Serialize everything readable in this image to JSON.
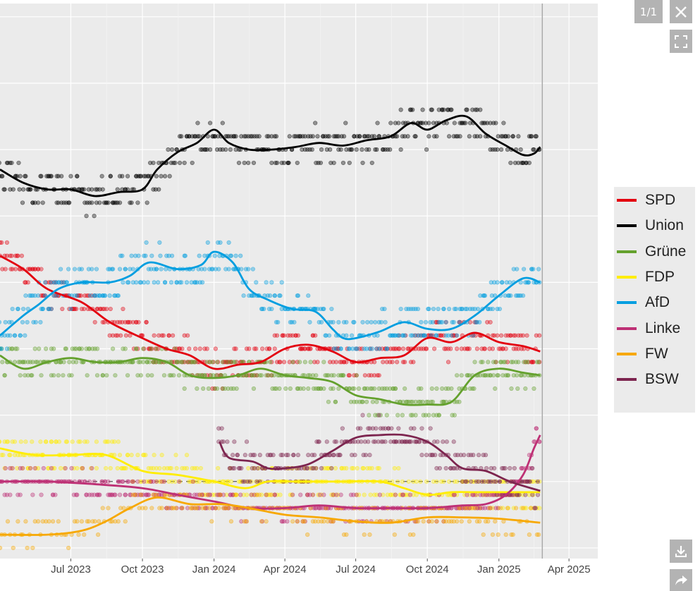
{
  "controls": {
    "counter": "1/1",
    "close_icon": "close-icon",
    "fullscreen_icon": "fullscreen-icon",
    "download_icon": "download-icon",
    "share_icon": "share-icon"
  },
  "chart_data": {
    "type": "scatter",
    "title": "",
    "xlabel": "",
    "ylabel": "",
    "x_tick_labels": [
      "Jul 2023",
      "Oct 2023",
      "Jan 2024",
      "Apr 2024",
      "Jul 2024",
      "Oct 2024",
      "Jan 2025",
      "Apr 2025"
    ],
    "x_ticks": [
      "2023-07-01",
      "2023-10-01",
      "2024-01-01",
      "2024-04-01",
      "2024-07-01",
      "2024-10-01",
      "2025-01-01",
      "2025-04-01"
    ],
    "xlim": [
      "2023-04-01",
      "2025-05-08"
    ],
    "ylim": [
      -0.8,
      41
    ],
    "y_gridlines": [
      0,
      5,
      10,
      15,
      20,
      25,
      30,
      35,
      40
    ],
    "threshold_line": 5,
    "end_marker_date": "2025-02-23",
    "grid": true,
    "legend_position": "right",
    "series": [
      {
        "name": "SPD",
        "color": "#e3000f",
        "trend": [
          [
            "2023-04-01",
            22
          ],
          [
            "2023-05-01",
            21
          ],
          [
            "2023-06-01",
            19.5
          ],
          [
            "2023-07-15",
            18.5
          ],
          [
            "2023-08-20",
            17
          ],
          [
            "2023-10-01",
            15.8
          ],
          [
            "2023-11-01",
            15
          ],
          [
            "2023-12-01",
            14.5
          ],
          [
            "2024-01-01",
            13.5
          ],
          [
            "2024-02-01",
            13.8
          ],
          [
            "2024-03-01",
            14
          ],
          [
            "2024-04-01",
            15
          ],
          [
            "2024-05-01",
            15.3
          ],
          [
            "2024-06-01",
            14.8
          ],
          [
            "2024-07-01",
            14
          ],
          [
            "2024-08-01",
            14.3
          ],
          [
            "2024-09-01",
            14.5
          ],
          [
            "2024-10-01",
            15.8
          ],
          [
            "2024-11-01",
            15.5
          ],
          [
            "2024-12-01",
            16.2
          ],
          [
            "2025-01-01",
            15.5
          ],
          [
            "2025-02-01",
            15.2
          ],
          [
            "2025-02-23",
            14.8
          ]
        ],
        "spread": 1.2,
        "density": 2
      },
      {
        "name": "Union",
        "color": "#000000",
        "trend": [
          [
            "2023-04-01",
            28.5
          ],
          [
            "2023-05-01",
            27.5
          ],
          [
            "2023-06-01",
            27
          ],
          [
            "2023-07-01",
            27
          ],
          [
            "2023-08-01",
            26.5
          ],
          [
            "2023-09-01",
            26.8
          ],
          [
            "2023-10-01",
            27
          ],
          [
            "2023-10-20",
            28.5
          ],
          [
            "2023-11-15",
            29.8
          ],
          [
            "2023-12-10",
            30.5
          ],
          [
            "2024-01-01",
            31.5
          ],
          [
            "2024-01-20",
            30.5
          ],
          [
            "2024-02-15",
            30
          ],
          [
            "2024-03-15",
            30
          ],
          [
            "2024-04-15",
            30.2
          ],
          [
            "2024-05-15",
            30.5
          ],
          [
            "2024-06-15",
            30.3
          ],
          [
            "2024-07-15",
            30.7
          ],
          [
            "2024-08-15",
            31
          ],
          [
            "2024-09-10",
            32
          ],
          [
            "2024-10-01",
            31.5
          ],
          [
            "2024-10-25",
            32.2
          ],
          [
            "2024-11-20",
            32.5
          ],
          [
            "2024-12-15",
            31.2
          ],
          [
            "2025-01-10",
            30.3
          ],
          [
            "2025-02-01",
            29.6
          ],
          [
            "2025-02-15",
            29.7
          ],
          [
            "2025-02-23",
            30.2
          ]
        ],
        "spread": 1.3,
        "density": 2
      },
      {
        "name": "Grüne",
        "color": "#64a12d",
        "trend": [
          [
            "2023-04-01",
            14.5
          ],
          [
            "2023-05-01",
            13.5
          ],
          [
            "2023-06-01",
            14
          ],
          [
            "2023-07-01",
            14.3
          ],
          [
            "2023-08-01",
            14
          ],
          [
            "2023-09-01",
            14
          ],
          [
            "2023-10-01",
            14.3
          ],
          [
            "2023-11-01",
            14
          ],
          [
            "2023-12-01",
            13
          ],
          [
            "2024-01-01",
            12.8
          ],
          [
            "2024-02-01",
            13
          ],
          [
            "2024-03-01",
            13.5
          ],
          [
            "2024-04-01",
            13
          ],
          [
            "2024-05-01",
            12.8
          ],
          [
            "2024-06-01",
            12.5
          ],
          [
            "2024-07-01",
            11.5
          ],
          [
            "2024-08-01",
            11.2
          ],
          [
            "2024-09-01",
            10.8
          ],
          [
            "2024-10-01",
            10.8
          ],
          [
            "2024-11-01",
            11
          ],
          [
            "2024-12-01",
            13
          ],
          [
            "2025-01-01",
            13.5
          ],
          [
            "2025-02-01",
            13.2
          ],
          [
            "2025-02-23",
            13
          ]
        ],
        "spread": 1.2,
        "density": 2
      },
      {
        "name": "FDP",
        "color": "#ffed00",
        "trend": [
          [
            "2023-04-01",
            7.5
          ],
          [
            "2023-05-15",
            7
          ],
          [
            "2023-07-01",
            7
          ],
          [
            "2023-08-15",
            7
          ],
          [
            "2023-10-01",
            5.8
          ],
          [
            "2023-11-15",
            5.5
          ],
          [
            "2024-01-01",
            5
          ],
          [
            "2024-02-10",
            4.5
          ],
          [
            "2024-03-10",
            5
          ],
          [
            "2024-04-15",
            5
          ],
          [
            "2024-05-15",
            5
          ],
          [
            "2024-06-15",
            5
          ],
          [
            "2024-08-01",
            5
          ],
          [
            "2024-09-01",
            4.5
          ],
          [
            "2024-10-01",
            4
          ],
          [
            "2024-11-01",
            4.2
          ],
          [
            "2024-12-01",
            4.2
          ],
          [
            "2025-01-01",
            4.2
          ],
          [
            "2025-02-23",
            4.2
          ]
        ],
        "spread": 1.2,
        "density": 2
      },
      {
        "name": "AfD",
        "color": "#009ee0",
        "trend": [
          [
            "2023-04-01",
            16
          ],
          [
            "2023-05-01",
            17.5
          ],
          [
            "2023-05-20",
            18.3
          ],
          [
            "2023-06-15",
            19.5
          ],
          [
            "2023-07-15",
            20
          ],
          [
            "2023-08-20",
            20
          ],
          [
            "2023-09-15",
            20.5
          ],
          [
            "2023-10-10",
            21.5
          ],
          [
            "2023-11-15",
            21
          ],
          [
            "2023-12-15",
            21.3
          ],
          [
            "2024-01-01",
            22.3
          ],
          [
            "2024-01-25",
            21.5
          ],
          [
            "2024-02-15",
            19.5
          ],
          [
            "2024-03-10",
            18.7
          ],
          [
            "2024-04-10",
            18
          ],
          [
            "2024-05-10",
            17.8
          ],
          [
            "2024-06-01",
            16.5
          ],
          [
            "2024-06-15",
            15.8
          ],
          [
            "2024-07-01",
            15.8
          ],
          [
            "2024-08-01",
            16.3
          ],
          [
            "2024-09-01",
            17
          ],
          [
            "2024-10-01",
            16.5
          ],
          [
            "2024-11-01",
            16.5
          ],
          [
            "2024-12-01",
            17.5
          ],
          [
            "2025-01-01",
            19
          ],
          [
            "2025-02-01",
            20.3
          ],
          [
            "2025-02-23",
            20
          ]
        ],
        "spread": 1.4,
        "density": 2
      },
      {
        "name": "Linke",
        "color": "#be3075",
        "trend": [
          [
            "2023-04-01",
            5
          ],
          [
            "2023-06-01",
            5
          ],
          [
            "2023-08-01",
            4.8
          ],
          [
            "2023-10-01",
            4.5
          ],
          [
            "2023-11-15",
            4
          ],
          [
            "2024-01-01",
            3.5
          ],
          [
            "2024-02-15",
            3
          ],
          [
            "2024-04-01",
            3
          ],
          [
            "2024-05-15",
            3.2
          ],
          [
            "2024-07-01",
            3
          ],
          [
            "2024-08-15",
            3
          ],
          [
            "2024-10-01",
            3
          ],
          [
            "2024-11-15",
            3.2
          ],
          [
            "2024-12-15",
            3.3
          ],
          [
            "2025-01-10",
            4
          ],
          [
            "2025-02-01",
            5.5
          ],
          [
            "2025-02-15",
            7.5
          ],
          [
            "2025-02-23",
            8.5
          ]
        ],
        "spread": 0.8,
        "density": 2
      },
      {
        "name": "FW",
        "color": "#f7a800",
        "trend": [
          [
            "2023-04-01",
            1
          ],
          [
            "2023-06-01",
            1
          ],
          [
            "2023-07-15",
            1.3
          ],
          [
            "2023-08-15",
            2
          ],
          [
            "2023-09-15",
            3
          ],
          [
            "2023-10-20",
            3.8
          ],
          [
            "2023-12-01",
            3.3
          ],
          [
            "2024-01-10",
            3.3
          ],
          [
            "2024-02-15",
            3
          ],
          [
            "2024-04-01",
            2.5
          ],
          [
            "2024-05-15",
            2.3
          ],
          [
            "2024-07-01",
            2
          ],
          [
            "2024-08-15",
            1.9
          ],
          [
            "2024-10-01",
            2.3
          ],
          [
            "2024-11-15",
            2.3
          ],
          [
            "2025-01-01",
            2.2
          ],
          [
            "2025-02-23",
            1.9
          ]
        ],
        "spread": 1.0,
        "density": 1
      },
      {
        "name": "BSW",
        "color": "#7d254f",
        "trend": [
          [
            "2024-01-08",
            8
          ],
          [
            "2024-01-20",
            6.8
          ],
          [
            "2024-02-20",
            6.5
          ],
          [
            "2024-03-10",
            6
          ],
          [
            "2024-04-01",
            6
          ],
          [
            "2024-05-01",
            6.3
          ],
          [
            "2024-06-01",
            7.3
          ],
          [
            "2024-07-01",
            8.3
          ],
          [
            "2024-08-01",
            8.5
          ],
          [
            "2024-09-01",
            8.5
          ],
          [
            "2024-10-01",
            8
          ],
          [
            "2024-10-25",
            7
          ],
          [
            "2024-11-15",
            6
          ],
          [
            "2024-12-15",
            5.8
          ],
          [
            "2025-01-15",
            5
          ],
          [
            "2025-02-23",
            4.3
          ]
        ],
        "spread": 1.2,
        "density": 2
      }
    ]
  }
}
